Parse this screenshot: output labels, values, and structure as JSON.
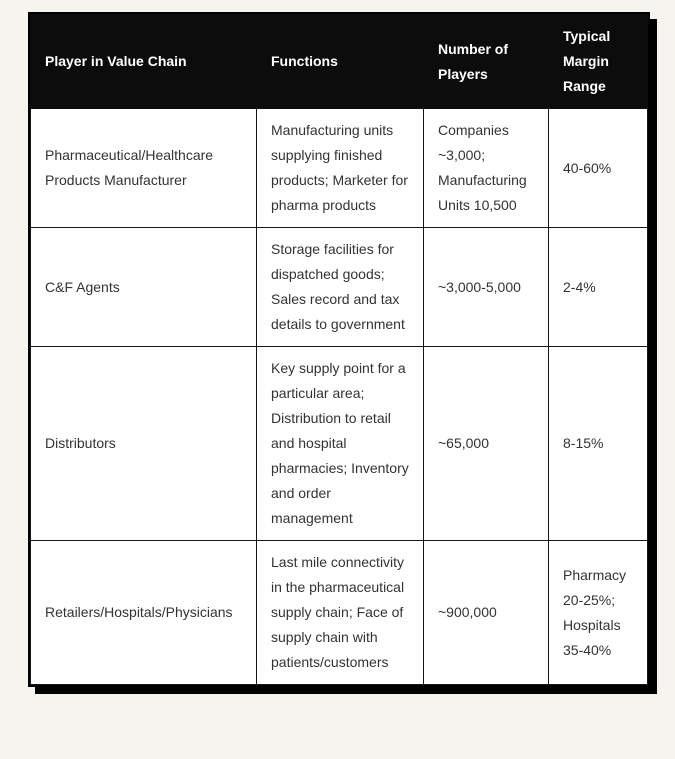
{
  "colors": {
    "page_background": "#F5F4EF",
    "header_background": "#0C0C0C",
    "header_text": "#FFFFFF",
    "body_background": "#FFFFFF",
    "body_text": "#333333",
    "border": "#161616"
  },
  "chart_data": {
    "type": "table",
    "columns": [
      "Player in Value Chain",
      "Functions",
      "Number of Players",
      "Typical Margin Range"
    ],
    "rows": [
      [
        "Pharmaceutical/Healthcare Products Manufacturer",
        "Manufacturing units supplying finished products; Marketer for pharma products",
        "Companies ~3,000; Manufacturing Units 10,500",
        "40-60%"
      ],
      [
        "C&F Agents",
        "Storage facilities for dispatched goods; Sales record and tax details to government",
        "~3,000-5,000",
        "2-4%"
      ],
      [
        "Distributors",
        "Key supply point for a particular area; Distribution to retail and hospital pharmacies; Inventory and order management",
        "~65,000",
        "8-15%"
      ],
      [
        "Retailers/Hospitals/Physicians",
        "Last mile connectivity in the pharmaceutical supply chain; Face of supply chain with patients/customers",
        "~900,000",
        "Pharmacy 20-25%; Hospitals 35-40%"
      ]
    ]
  }
}
